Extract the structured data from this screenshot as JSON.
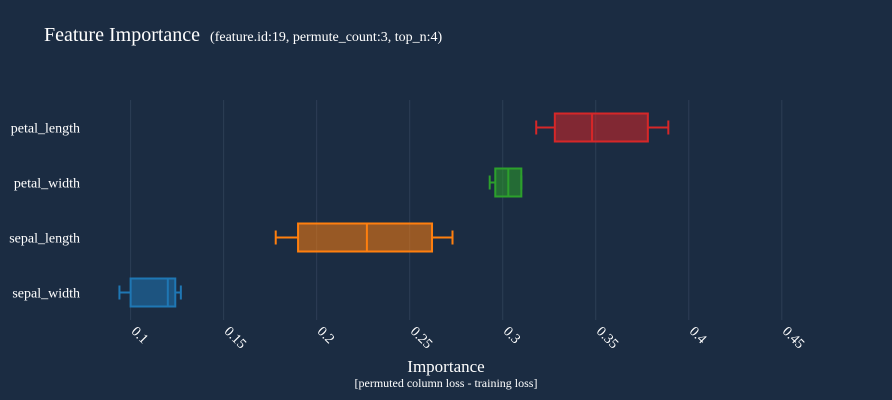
{
  "chart_data": {
    "type": "box",
    "title": "Feature Importance",
    "subtitle": "(feature.id:19, permute_count:3, top_n:4)",
    "xlabel": "Importance",
    "xlabel_sub": "[permuted column loss - training loss]",
    "xlim": [
      0.09,
      0.463
    ],
    "xticks": [
      0.1,
      0.15,
      0.2,
      0.25,
      0.3,
      0.35,
      0.4,
      0.45
    ],
    "xtick_labels": [
      "0.1",
      "0.15",
      "0.2",
      "0.25",
      "0.3",
      "0.35",
      "0.4",
      "0.45"
    ],
    "grid": true,
    "categories": [
      "petal_length",
      "petal_width",
      "sepal_length",
      "sepal_width"
    ],
    "boxes": [
      {
        "category": "petal_length",
        "min": 0.318,
        "q1": 0.328,
        "median": 0.348,
        "q3": 0.378,
        "max": 0.389,
        "color": "#d62728"
      },
      {
        "category": "petal_width",
        "min": 0.293,
        "q1": 0.296,
        "median": 0.303,
        "q3": 0.31,
        "max": 0.31,
        "color": "#2ca02c"
      },
      {
        "category": "sepal_length",
        "min": 0.178,
        "q1": 0.19,
        "median": 0.227,
        "q3": 0.262,
        "max": 0.273,
        "color": "#ff7f0e"
      },
      {
        "category": "sepal_width",
        "min": 0.094,
        "q1": 0.1,
        "median": 0.12,
        "q3": 0.124,
        "max": 0.127,
        "color": "#1f77b4"
      }
    ]
  }
}
